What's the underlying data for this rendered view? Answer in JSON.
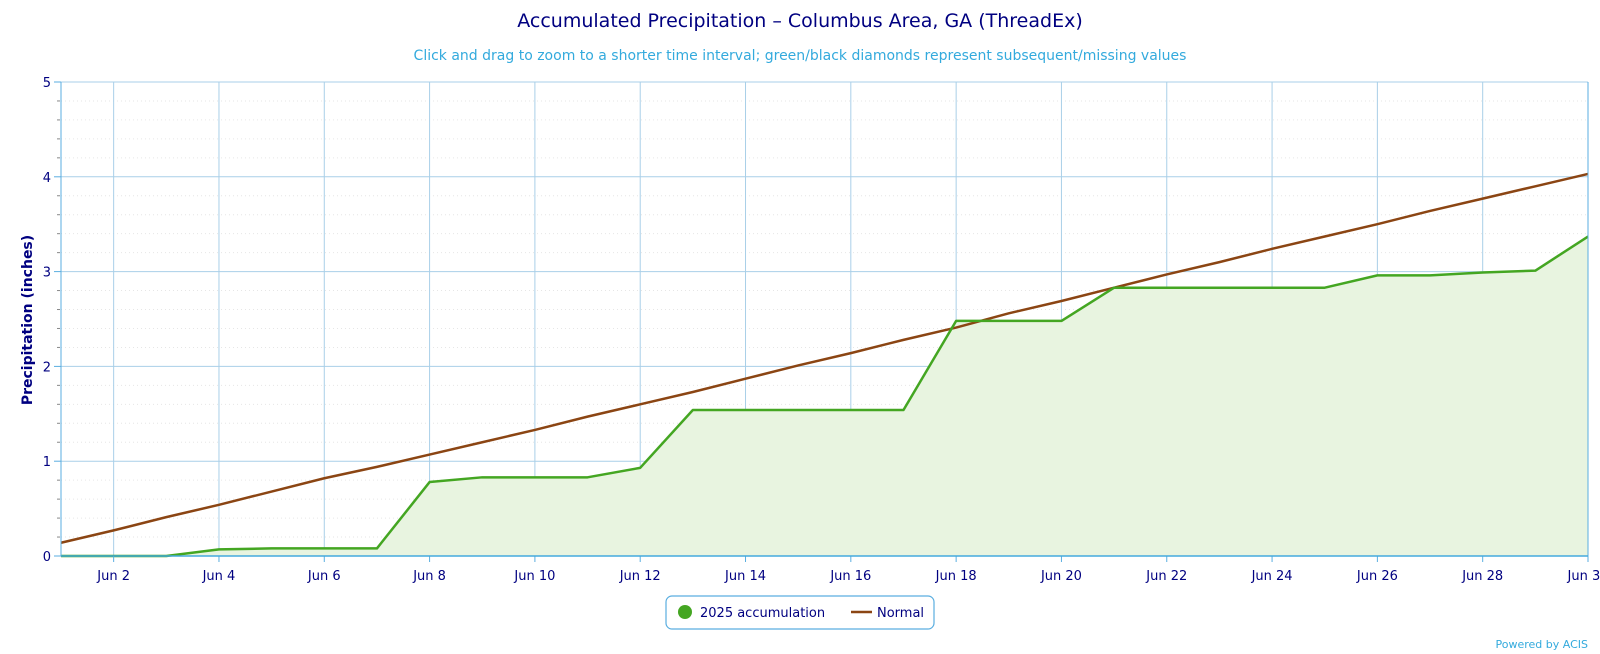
{
  "chart_data": {
    "type": "line",
    "title": "Accumulated Precipitation – Columbus Area, GA (ThreadEx)",
    "subtitle": "Click and drag to zoom to a shorter time interval; green/black diamonds represent subsequent/missing values",
    "ylabel": "Precipitation (inches)",
    "xlabel": "",
    "ylim": [
      0,
      5
    ],
    "yticks": [
      0,
      1,
      2,
      3,
      4,
      5
    ],
    "xlim": [
      1,
      30
    ],
    "xticks": [
      {
        "day": 2,
        "label": "Jun 2"
      },
      {
        "day": 4,
        "label": "Jun 4"
      },
      {
        "day": 6,
        "label": "Jun 6"
      },
      {
        "day": 8,
        "label": "Jun 8"
      },
      {
        "day": 10,
        "label": "Jun 10"
      },
      {
        "day": 12,
        "label": "Jun 12"
      },
      {
        "day": 14,
        "label": "Jun 14"
      },
      {
        "day": 16,
        "label": "Jun 16"
      },
      {
        "day": 18,
        "label": "Jun 18"
      },
      {
        "day": 20,
        "label": "Jun 20"
      },
      {
        "day": 22,
        "label": "Jun 22"
      },
      {
        "day": 24,
        "label": "Jun 24"
      },
      {
        "day": 26,
        "label": "Jun 26"
      },
      {
        "day": 28,
        "label": "Jun 28"
      },
      {
        "day": 30,
        "label": "Jun 30"
      }
    ],
    "grid": true,
    "legend_position": "bottom-center",
    "series": [
      {
        "name": "2025 accumulation",
        "color": "#44a622",
        "fill": "#e8f4e0",
        "x": [
          1,
          2,
          3,
          4,
          5,
          6,
          7,
          8,
          9,
          10,
          11,
          12,
          13,
          14,
          15,
          16,
          17,
          18,
          19,
          20,
          21,
          22,
          23,
          24,
          25,
          26,
          27,
          28,
          29,
          30
        ],
        "values": [
          0.0,
          0.0,
          0.0,
          0.07,
          0.08,
          0.08,
          0.08,
          0.78,
          0.83,
          0.83,
          0.83,
          0.93,
          1.54,
          1.54,
          1.54,
          1.54,
          1.54,
          2.48,
          2.48,
          2.48,
          2.83,
          2.83,
          2.83,
          2.83,
          2.83,
          2.96,
          2.96,
          2.99,
          3.01,
          3.37
        ]
      },
      {
        "name": "Normal",
        "color": "#8b4513",
        "x": [
          1,
          2,
          3,
          4,
          5,
          6,
          7,
          8,
          9,
          10,
          11,
          12,
          13,
          14,
          15,
          16,
          17,
          18,
          19,
          20,
          21,
          22,
          23,
          24,
          25,
          26,
          27,
          28,
          29,
          30
        ],
        "values": [
          0.14,
          0.27,
          0.41,
          0.54,
          0.68,
          0.82,
          0.94,
          1.07,
          1.2,
          1.33,
          1.47,
          1.6,
          1.73,
          1.87,
          2.01,
          2.14,
          2.28,
          2.41,
          2.56,
          2.69,
          2.83,
          2.97,
          3.1,
          3.24,
          3.37,
          3.5,
          3.64,
          3.77,
          3.9,
          4.03
        ]
      }
    ]
  },
  "credit": "Powered by ACIS"
}
